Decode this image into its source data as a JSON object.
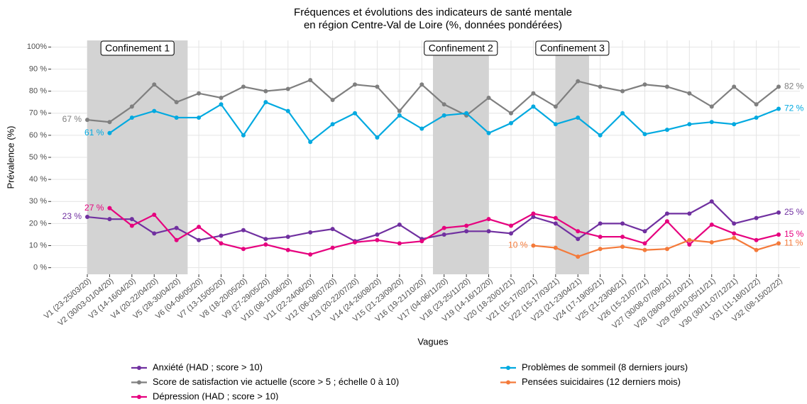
{
  "chart_data": {
    "type": "line",
    "title": [
      "Fréquences et évolutions des indicateurs de santé mentale",
      "en région Centre-Val de Loire (%, données pondérées)"
    ],
    "y_label": "Prévalence (%)",
    "x_label": "Vagues",
    "categories": [
      "V1 (23-25/03/20)",
      "V2 (30/03-01/04/20)",
      "V3 (14-16/04/20)",
      "V4 (20-22/04/20)",
      "V5 (28-30/04/20)",
      "V6 (04-06/05/20)",
      "V7 (13-15/05/20)",
      "V8 (18-20/05/20)",
      "V9 (27-29/05/20)",
      "V10 (08-10/06/20)",
      "V11 (22-24/06/20)",
      "V12 (06-08/07/20)",
      "V13 (20-22/07/20)",
      "V14 (24-26/08/20)",
      "V15 (21-23/09/20)",
      "V16 (19-21/10/20)",
      "V17 (04-06/11/20)",
      "V18 (23-25/11/20)",
      "V19 (14-16/12/20)",
      "V20 (18-20/01/21)",
      "V21 (15-17/02/21)",
      "V22 (15-17/03/21)",
      "V23 (21-23/04/21)",
      "V24 (17-19/05/21)",
      "V25 (21-23/06/21)",
      "V26 (15-21/07/21)",
      "V27 (30/08-07/09/21)",
      "V28 (28/09-05/10/21)",
      "V29 (28/10-05/11/21)",
      "V30 (30/11-07/12/21)",
      "V31 (11-18/01/22)",
      "V32 (08-15/02/22)"
    ],
    "ylim": [
      -3,
      103
    ],
    "yticks": [
      {
        "value": 0,
        "label": "0 %"
      },
      {
        "value": 10,
        "label": "10 %"
      },
      {
        "value": 20,
        "label": "20 %"
      },
      {
        "value": 30,
        "label": "30 %"
      },
      {
        "value": 40,
        "label": "40 %"
      },
      {
        "value": 50,
        "label": "50 %"
      },
      {
        "value": 60,
        "label": "60 %"
      },
      {
        "value": 70,
        "label": "70 %"
      },
      {
        "value": 80,
        "label": "80 %"
      },
      {
        "value": 90,
        "label": "90 %"
      },
      {
        "value": 100,
        "label": "100%"
      }
    ],
    "grid": true,
    "shaded_regions": [
      {
        "label": "Confinement 1",
        "start": 0,
        "end": 4.5
      },
      {
        "label": "Confinement 2",
        "start": 15.5,
        "end": 18
      },
      {
        "label": "Confinement 3",
        "start": 21,
        "end": 22.5
      }
    ],
    "series": [
      {
        "name": "Anxiété (HAD ; score > 10)",
        "color": "#7030a0",
        "start_label": "23 %",
        "end_label": "25 %",
        "values": [
          23,
          22,
          22,
          15.5,
          18,
          12.5,
          14.5,
          17,
          13,
          14,
          16,
          17.5,
          12,
          15,
          19.5,
          13,
          15,
          16.5,
          16.5,
          15.5,
          23,
          20,
          13,
          20,
          20,
          16.5,
          24.5,
          24.5,
          30,
          20,
          22.5,
          25
        ]
      },
      {
        "name": "Score de satisfaction vie actuelle (score > 5 ; échelle 0 à 10)",
        "color": "#7f7f7f",
        "start_label": "67 %",
        "end_label": "82 %",
        "values": [
          67,
          66,
          73,
          83,
          75,
          79,
          77,
          82,
          80,
          81,
          85,
          76,
          83,
          82,
          71,
          83,
          74,
          69,
          77,
          70,
          79,
          73,
          84.5,
          82,
          80,
          83,
          82,
          79,
          73,
          82,
          74,
          82
        ]
      },
      {
        "name": "Dépression (HAD ; score > 10)",
        "color": "#e6007e",
        "start_label": "27 %",
        "end_label": "15 %",
        "values": [
          null,
          27,
          19,
          24,
          12.5,
          18.5,
          11,
          8.5,
          10.5,
          8,
          6,
          9,
          11.5,
          12.5,
          11,
          12,
          18,
          19,
          22,
          19,
          24.5,
          22.5,
          16.5,
          14,
          14,
          11,
          21,
          10.5,
          19.5,
          15.5,
          12.5,
          15
        ]
      },
      {
        "name": "Problèmes de sommeil (8 derniers jours)",
        "color": "#00a9e0",
        "start_label": "61 %",
        "end_label": "72 %",
        "values": [
          null,
          61,
          68,
          71,
          68,
          68,
          74,
          60,
          75,
          71,
          57,
          65,
          70,
          59,
          69,
          63,
          69,
          70,
          61,
          65.5,
          73,
          65,
          68,
          60,
          70,
          60.5,
          62.5,
          65,
          66,
          65,
          68,
          72
        ]
      },
      {
        "name": "Pensées suicidaires (12 derniers mois)",
        "color": "#f47a3a",
        "start_label": "10 %",
        "end_label": "11 %",
        "values": [
          null,
          null,
          null,
          null,
          null,
          null,
          null,
          null,
          null,
          null,
          null,
          null,
          null,
          null,
          null,
          null,
          null,
          null,
          null,
          null,
          10,
          9,
          5,
          8.5,
          9.5,
          8,
          8.5,
          12.5,
          11.5,
          13.5,
          8,
          11
        ]
      }
    ]
  }
}
